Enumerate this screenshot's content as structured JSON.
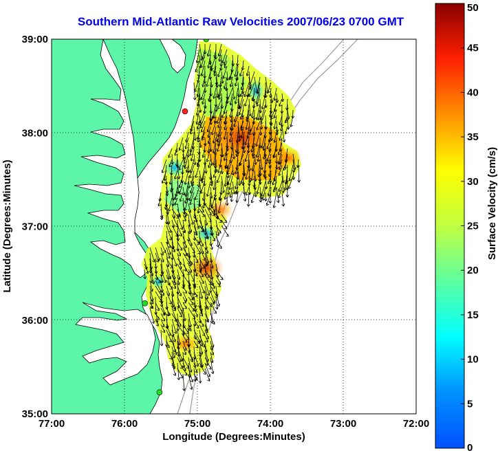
{
  "title": "Southern Mid-Atlantic Raw Velocities 2007/06/23 0700 GMT",
  "chart_data": {
    "type": "map",
    "xlabel": "Longitude (Degrees:Minutes)",
    "ylabel": "Latitude (Degrees:Minutes)",
    "xlim": [
      -77,
      -72
    ],
    "ylim": [
      35,
      39
    ],
    "x_ticks": [
      {
        "value": -77,
        "label": "77:00"
      },
      {
        "value": -76,
        "label": "76:00"
      },
      {
        "value": -75,
        "label": "75:00"
      },
      {
        "value": -74,
        "label": "74:00"
      },
      {
        "value": -73,
        "label": "73:00"
      },
      {
        "value": -72,
        "label": "72:00"
      }
    ],
    "y_ticks": [
      {
        "value": 35,
        "label": "35:00"
      },
      {
        "value": 36,
        "label": "36:00"
      },
      {
        "value": 37,
        "label": "37:00"
      },
      {
        "value": 38,
        "label": "38:00"
      },
      {
        "value": 39,
        "label": "39:00"
      }
    ],
    "grid": "dotted",
    "colorbar": {
      "label": "Surface Velocity (cm/s)",
      "min": 0,
      "max": 50,
      "ticks": [
        0,
        5,
        10,
        15,
        20,
        25,
        30,
        35,
        40,
        45,
        50
      ],
      "colormap": "jet"
    },
    "land_color": "#5df5a8",
    "stations": [
      {
        "lon": -74.88,
        "lat": 39.0,
        "color": "#22dd22"
      },
      {
        "lon": -75.17,
        "lat": 38.23,
        "color": "#ff2020"
      },
      {
        "lon": -75.72,
        "lat": 36.18,
        "color": "#22dd22"
      },
      {
        "lon": -75.52,
        "lat": 35.23,
        "color": "#22dd22"
      }
    ]
  }
}
